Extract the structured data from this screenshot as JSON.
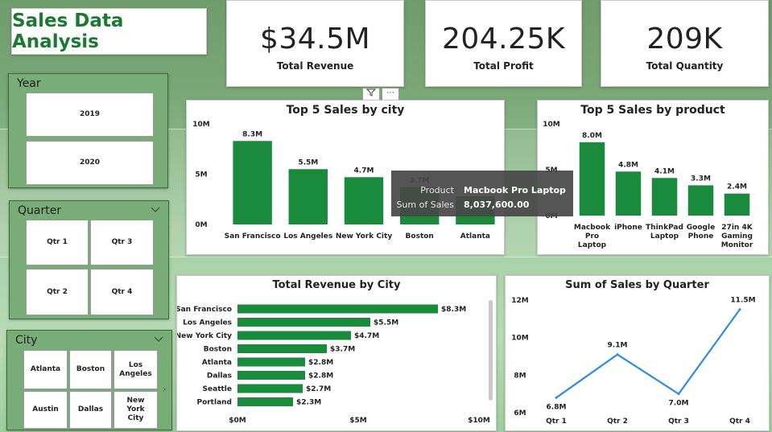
{
  "title": "Sales Data Analysis",
  "kpis": [
    {
      "value": "$34.5M",
      "label": "Total Revenue"
    },
    {
      "value": "204.25K",
      "label": "Total Profit"
    },
    {
      "value": "209K",
      "label": "Total Quantity"
    }
  ],
  "slicers": {
    "year": {
      "title": "Year",
      "options": [
        "2019",
        "2020"
      ]
    },
    "quarter": {
      "title": "Quarter",
      "options": [
        "Qtr 1",
        "Qtr 3",
        "Qtr 2",
        "Qtr 4"
      ]
    },
    "city": {
      "title": "City",
      "options": [
        "Atlanta",
        "Boston",
        "Los Angeles",
        "Austin",
        "Dallas",
        "New York City"
      ]
    }
  },
  "visual_header_icons": [
    "filter-icon",
    "more-options-icon"
  ],
  "tooltip": {
    "row1_key": "Product",
    "row1_val": "Macbook Pro Laptop",
    "row2_key": "Sum of Sales",
    "row2_val": "8,037,600.00"
  },
  "colors": {
    "bar": "#1a8a3c",
    "line": "#2f8be6",
    "title_green": "#1a7a32"
  },
  "chart_data": [
    {
      "type": "bar",
      "title": "Top 5 Sales by city",
      "categories": [
        "San Francisco",
        "Los Angeles",
        "New York City",
        "Boston",
        "Atlanta"
      ],
      "values": [
        8.3,
        5.5,
        4.7,
        3.7,
        2.8
      ],
      "data_labels": [
        "8.3M",
        "5.5M",
        "4.7M",
        "3.7M",
        ""
      ],
      "yticks": [
        "0M",
        "5M",
        "10M"
      ],
      "ylim": [
        0,
        10
      ]
    },
    {
      "type": "bar",
      "title": "Top 5 Sales by product",
      "categories": [
        "Macbook Pro Laptop",
        "iPhone",
        "ThinkPad Laptop",
        "Google Phone",
        "27in 4K Gaming Monitor"
      ],
      "values": [
        8.0,
        4.8,
        4.1,
        3.3,
        2.4
      ],
      "data_labels": [
        "8.0M",
        "4.8M",
        "4.1M",
        "3.3M",
        "2.4M"
      ],
      "yticks": [
        "0M",
        "5M",
        "10M"
      ],
      "ylim": [
        0,
        10
      ]
    },
    {
      "type": "bar",
      "orientation": "horizontal",
      "title": "Total Revenue by City",
      "categories": [
        "San Francisco",
        "Los Angeles",
        "New York City",
        "Boston",
        "Atlanta",
        "Dallas",
        "Seattle",
        "Portland"
      ],
      "values": [
        8.3,
        5.5,
        4.7,
        3.7,
        2.8,
        2.8,
        2.7,
        2.3
      ],
      "data_labels": [
        "$8.3M",
        "$5.5M",
        "$4.7M",
        "$3.7M",
        "$2.8M",
        "$2.8M",
        "$2.7M",
        "$2.3M"
      ],
      "xticks": [
        "$0M",
        "$5M",
        "$10M"
      ],
      "xlim": [
        0,
        10
      ]
    },
    {
      "type": "line",
      "title": "Sum of Sales by Quarter",
      "categories": [
        "Qtr 1",
        "Qtr 2",
        "Qtr 3",
        "Qtr 4"
      ],
      "values": [
        6.8,
        9.1,
        7.0,
        11.5
      ],
      "data_labels": [
        "6.8M",
        "9.1M",
        "7.0M",
        "11.5M"
      ],
      "yticks": [
        "6M",
        "8M",
        "10M",
        "12M"
      ],
      "ylim": [
        6,
        12
      ]
    }
  ]
}
